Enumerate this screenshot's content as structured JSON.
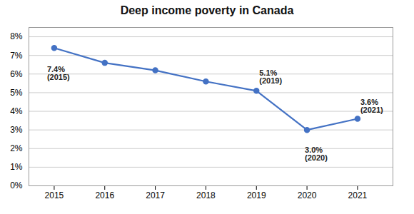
{
  "chart_data": {
    "type": "line",
    "title": "Deep income poverty in Canada",
    "x": [
      2015,
      2016,
      2017,
      2018,
      2019,
      2020,
      2021
    ],
    "values": [
      7.4,
      6.6,
      6.2,
      5.6,
      5.1,
      3.0,
      3.6
    ],
    "color": "#4472C4",
    "marker": "circle",
    "xlim": [
      2014.5,
      2021.7
    ],
    "xticks": [
      2015,
      2016,
      2017,
      2018,
      2019,
      2020,
      2021
    ],
    "ylim": [
      0,
      8.5
    ],
    "yticks": [
      {
        "value": 0,
        "label": "0%"
      },
      {
        "value": 1,
        "label": "1%"
      },
      {
        "value": 2,
        "label": "2%"
      },
      {
        "value": 3,
        "label": "3%"
      },
      {
        "value": 4,
        "label": "4%"
      },
      {
        "value": 5,
        "label": "5%"
      },
      {
        "value": 6,
        "label": "6%"
      },
      {
        "value": 7,
        "label": "7%"
      },
      {
        "value": 8,
        "label": "8%"
      }
    ],
    "grid": true,
    "annotations": [
      {
        "x": 2015,
        "y": 7.4,
        "text": "7.4%\n(2015)"
      },
      {
        "x": 2019,
        "y": 5.1,
        "text": "5.1%\n(2019)"
      },
      {
        "x": 2020,
        "y": 3.0,
        "text": "3.0%\n(2020)"
      },
      {
        "x": 2021,
        "y": 3.6,
        "text": "3.6%\n(2021)"
      }
    ]
  }
}
